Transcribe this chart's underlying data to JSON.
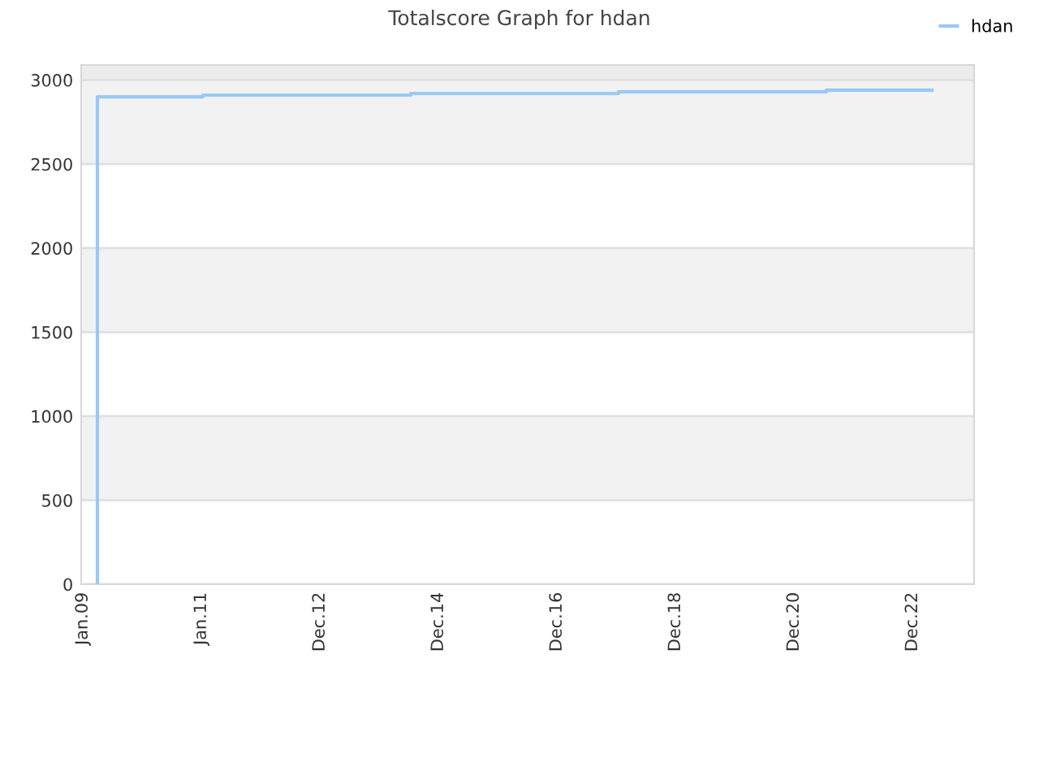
{
  "chart_data": {
    "type": "step",
    "title": "Totalscore Graph for hdan",
    "x": [
      "2009-03-31",
      "2009-04-01",
      "2011-01-10",
      "2014-07-14",
      "2018-01-13",
      "2021-07-16",
      "2023-04-27"
    ],
    "series": [
      {
        "name": "hdan",
        "color": "#99c9f5",
        "values": [
          0,
          2900,
          2910,
          2920,
          2930,
          2940,
          2940
        ]
      }
    ],
    "bands": [
      {
        "axis": "y",
        "from": 500,
        "to": 1000,
        "color": "#f2f2f2"
      },
      {
        "axis": "y",
        "from": 1500,
        "to": 2000,
        "color": "#f2f2f2"
      },
      {
        "axis": "y",
        "from": 2500,
        "to": 3000,
        "color": "#f2f2f2"
      },
      {
        "axis": "y",
        "from": 3000,
        "to": 3090,
        "color": "#ececec"
      }
    ],
    "xlim": [
      "2008-12-22",
      "2024-01-12"
    ],
    "xticks": [
      {
        "value": "2009-01-01",
        "label": "Jan.09"
      },
      {
        "value": "2011-01-01",
        "label": "Jan.11"
      },
      {
        "value": "2012-12-31",
        "label": "Dec.12"
      },
      {
        "value": "2014-12-31",
        "label": "Dec.14"
      },
      {
        "value": "2016-12-30",
        "label": "Dec.16"
      },
      {
        "value": "2018-12-30",
        "label": "Dec.18"
      },
      {
        "value": "2020-12-29",
        "label": "Dec.20"
      },
      {
        "value": "2022-12-29",
        "label": "Dec.22"
      }
    ],
    "ylim": [
      0,
      3090
    ],
    "yticks": [
      0,
      500,
      1000,
      1500,
      2000,
      2500,
      3000
    ],
    "grid": "y",
    "legend": "top right",
    "marker": "none",
    "line_style": "solid"
  }
}
